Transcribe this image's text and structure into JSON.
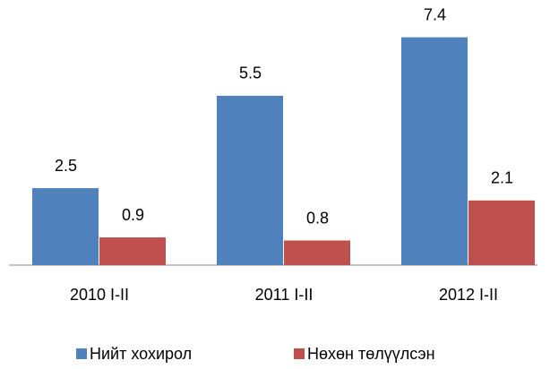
{
  "chart_data": {
    "type": "bar",
    "categories": [
      "2010 I-II",
      "2011 I-II",
      "2012 I-II"
    ],
    "series": [
      {
        "name": "Нийт хохирол",
        "color": "#4f81bd",
        "values": [
          2.5,
          5.5,
          7.4
        ]
      },
      {
        "name": "Нөхөн төлүүлсэн",
        "color": "#c0504d",
        "values": [
          0.9,
          0.8,
          2.1
        ]
      }
    ],
    "ylim": [
      0,
      8
    ]
  }
}
